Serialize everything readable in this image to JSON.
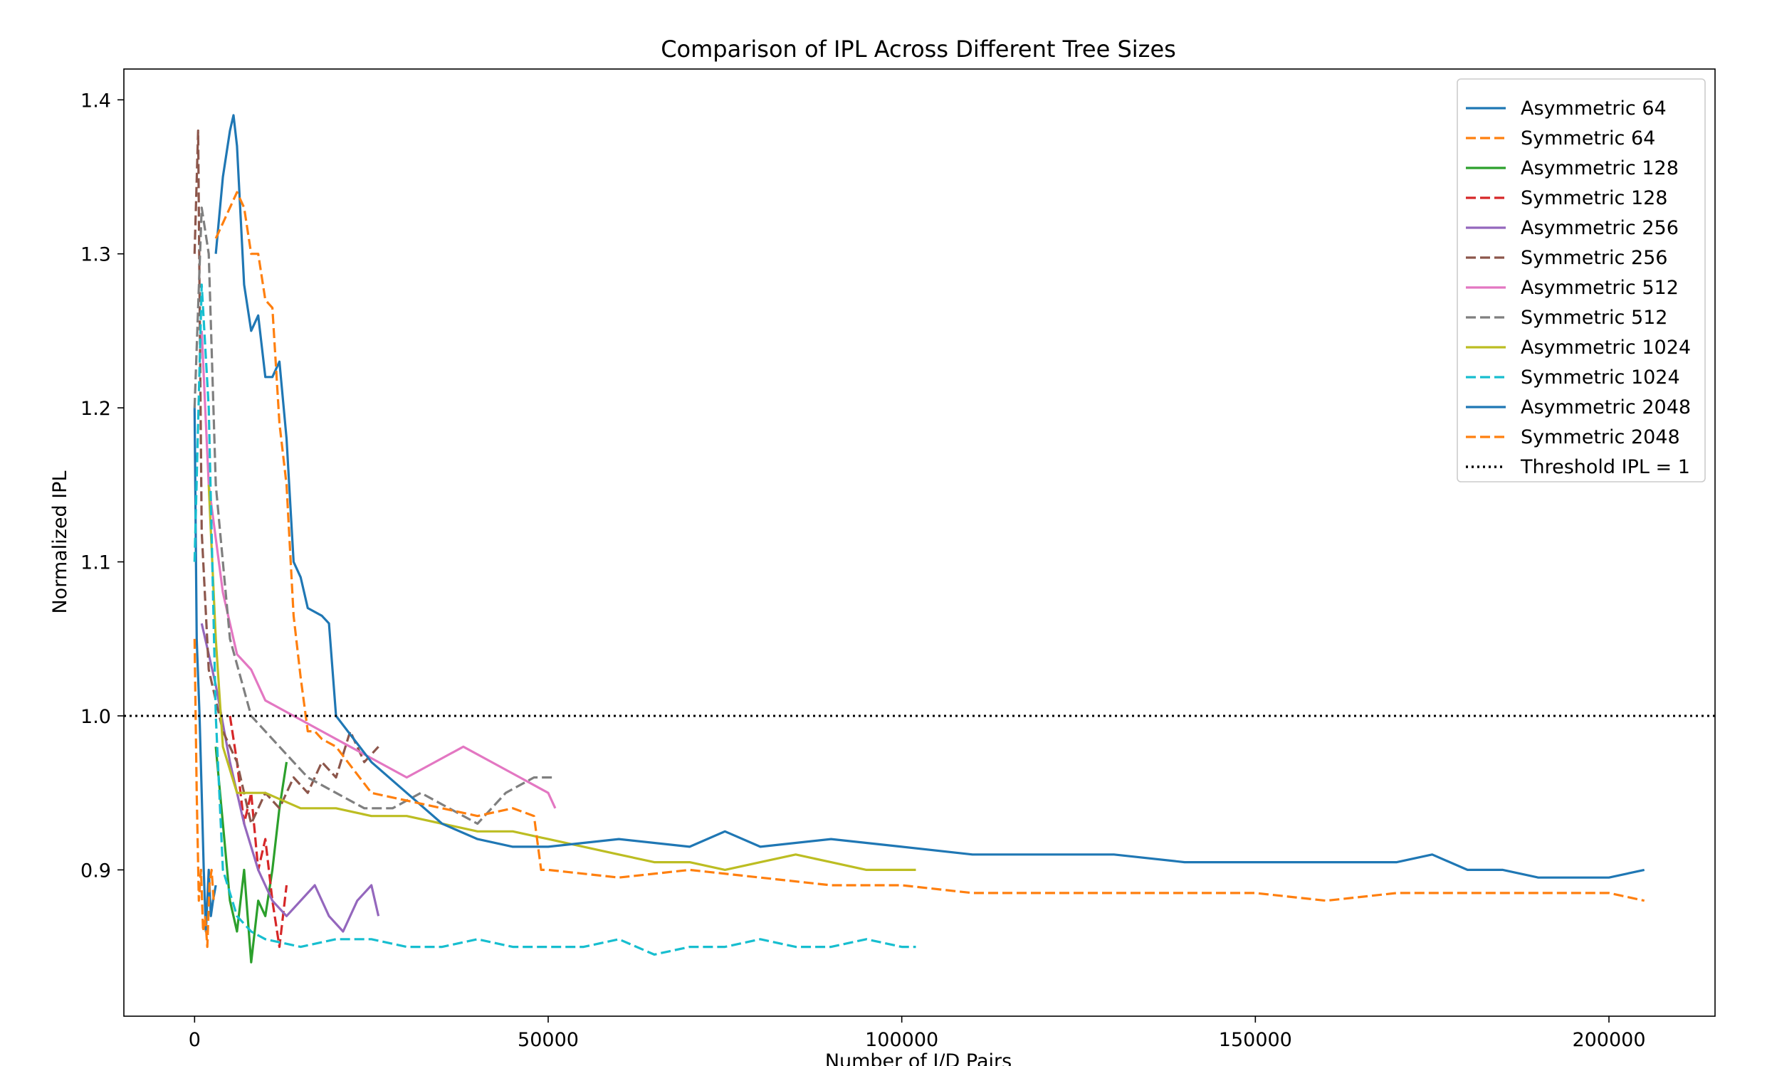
{
  "chart_data": {
    "type": "line",
    "title": "Comparison of IPL Across Different Tree Sizes",
    "xlabel": "Number of I/D Pairs",
    "ylabel": "Normalized IPL",
    "xlim": [
      -10000,
      215000
    ],
    "ylim": [
      0.805,
      1.42
    ],
    "xticks": [
      0,
      50000,
      100000,
      150000,
      200000
    ],
    "xtick_labels": [
      "0",
      "50000",
      "100000",
      "150000",
      "200000"
    ],
    "yticks": [
      0.9,
      1.0,
      1.1,
      1.2,
      1.3,
      1.4
    ],
    "ytick_labels": [
      "0.9",
      "1.0",
      "1.1",
      "1.2",
      "1.3",
      "1.4"
    ],
    "grid": false,
    "legend_position": "top-right",
    "threshold": {
      "name": "Threshold IPL = 1",
      "y": 1.0,
      "color": "#000000",
      "style": "dotted"
    },
    "series": [
      {
        "name": "Asymmetric 64",
        "color": "#1f77b4",
        "style": "solid",
        "x": [
          0,
          300,
          700,
          1000,
          1300,
          1600,
          2000,
          2300,
          2600,
          3000
        ],
        "y": [
          1.2,
          1.05,
          1.0,
          0.95,
          0.9,
          0.86,
          0.9,
          0.87,
          0.88,
          0.89
        ]
      },
      {
        "name": "Symmetric 64",
        "color": "#ff7f0e",
        "style": "dashed",
        "x": [
          0,
          300,
          600,
          900,
          1200,
          1500,
          1800,
          2100,
          2400,
          2700
        ],
        "y": [
          1.05,
          0.95,
          0.88,
          0.9,
          0.86,
          0.87,
          0.85,
          0.89,
          0.9,
          0.88
        ]
      },
      {
        "name": "Asymmetric 128",
        "color": "#2ca02c",
        "style": "solid",
        "x": [
          3000,
          4000,
          5000,
          6000,
          7000,
          8000,
          9000,
          10000,
          11000,
          12000,
          13000
        ],
        "y": [
          0.98,
          0.93,
          0.88,
          0.86,
          0.9,
          0.84,
          0.88,
          0.87,
          0.9,
          0.94,
          0.97
        ]
      },
      {
        "name": "Symmetric 128",
        "color": "#d62728",
        "style": "dashed",
        "x": [
          5000,
          6000,
          7000,
          8000,
          9000,
          10000,
          11000,
          12000,
          13000
        ],
        "y": [
          1.0,
          0.97,
          0.93,
          0.95,
          0.9,
          0.92,
          0.88,
          0.85,
          0.89
        ]
      },
      {
        "name": "Asymmetric 256",
        "color": "#9467bd",
        "style": "solid",
        "x": [
          1000,
          3000,
          5000,
          7000,
          9000,
          11000,
          13000,
          15000,
          17000,
          19000,
          21000,
          23000,
          25000,
          26000
        ],
        "y": [
          1.06,
          1.02,
          0.97,
          0.93,
          0.9,
          0.88,
          0.87,
          0.88,
          0.89,
          0.87,
          0.86,
          0.88,
          0.89,
          0.87
        ]
      },
      {
        "name": "Symmetric 256",
        "color": "#8c564b",
        "style": "dashed",
        "x": [
          0,
          500,
          1000,
          2000,
          4000,
          6000,
          8000,
          10000,
          12000,
          14000,
          16000,
          18000,
          20000,
          22000,
          24000,
          26000
        ],
        "y": [
          1.3,
          1.38,
          1.12,
          1.03,
          0.99,
          0.97,
          0.93,
          0.95,
          0.94,
          0.96,
          0.95,
          0.97,
          0.96,
          0.99,
          0.97,
          0.98
        ]
      },
      {
        "name": "Asymmetric 512",
        "color": "#e377c2",
        "style": "solid",
        "x": [
          1000,
          2000,
          4000,
          6000,
          8000,
          10000,
          14000,
          18000,
          22000,
          26000,
          30000,
          34000,
          38000,
          42000,
          46000,
          50000,
          51000
        ],
        "y": [
          1.25,
          1.15,
          1.08,
          1.04,
          1.03,
          1.01,
          1.0,
          0.99,
          0.98,
          0.97,
          0.96,
          0.97,
          0.98,
          0.97,
          0.96,
          0.95,
          0.94
        ]
      },
      {
        "name": "Symmetric 512",
        "color": "#7f7f7f",
        "style": "dashed",
        "x": [
          0,
          1000,
          2000,
          3000,
          5000,
          8000,
          12000,
          16000,
          20000,
          24000,
          28000,
          32000,
          36000,
          40000,
          44000,
          48000,
          51000
        ],
        "y": [
          1.2,
          1.33,
          1.3,
          1.15,
          1.05,
          1.0,
          0.98,
          0.96,
          0.95,
          0.94,
          0.94,
          0.95,
          0.94,
          0.93,
          0.95,
          0.96,
          0.96
        ]
      },
      {
        "name": "Asymmetric 1024",
        "color": "#bcbd22",
        "style": "solid",
        "x": [
          2000,
          3000,
          4000,
          6000,
          10000,
          15000,
          20000,
          25000,
          30000,
          35000,
          40000,
          45000,
          50000,
          55000,
          60000,
          65000,
          70000,
          75000,
          80000,
          85000,
          90000,
          95000,
          100000,
          102000
        ],
        "y": [
          1.15,
          1.05,
          0.98,
          0.95,
          0.95,
          0.94,
          0.94,
          0.935,
          0.935,
          0.93,
          0.925,
          0.925,
          0.92,
          0.915,
          0.91,
          0.905,
          0.905,
          0.9,
          0.905,
          0.91,
          0.905,
          0.9,
          0.9,
          0.9
        ]
      },
      {
        "name": "Symmetric 1024",
        "color": "#17becf",
        "style": "dashed",
        "x": [
          0,
          1000,
          2000,
          3000,
          4000,
          6000,
          8000,
          10000,
          15000,
          20000,
          25000,
          30000,
          35000,
          40000,
          45000,
          50000,
          55000,
          60000,
          65000,
          70000,
          75000,
          80000,
          85000,
          90000,
          95000,
          100000,
          102000
        ],
        "y": [
          1.1,
          1.28,
          1.2,
          1.0,
          0.9,
          0.87,
          0.86,
          0.855,
          0.85,
          0.855,
          0.855,
          0.85,
          0.85,
          0.855,
          0.85,
          0.85,
          0.85,
          0.855,
          0.845,
          0.85,
          0.85,
          0.855,
          0.85,
          0.85,
          0.855,
          0.85,
          0.85
        ]
      },
      {
        "name": "Asymmetric 2048",
        "color": "#1f77b4",
        "style": "solid",
        "x": [
          3000,
          4000,
          5000,
          5500,
          6000,
          7000,
          8000,
          9000,
          10000,
          11000,
          12000,
          13000,
          14000,
          15000,
          16000,
          18000,
          19000,
          20000,
          25000,
          30000,
          35000,
          40000,
          45000,
          50000,
          60000,
          70000,
          75000,
          80000,
          90000,
          100000,
          110000,
          120000,
          130000,
          140000,
          150000,
          160000,
          170000,
          175000,
          180000,
          185000,
          190000,
          195000,
          200000,
          205000
        ],
        "y": [
          1.3,
          1.35,
          1.38,
          1.39,
          1.37,
          1.28,
          1.25,
          1.26,
          1.22,
          1.22,
          1.23,
          1.18,
          1.1,
          1.09,
          1.07,
          1.065,
          1.06,
          1.0,
          0.97,
          0.95,
          0.93,
          0.92,
          0.915,
          0.915,
          0.92,
          0.915,
          0.925,
          0.915,
          0.92,
          0.915,
          0.91,
          0.91,
          0.91,
          0.905,
          0.905,
          0.905,
          0.905,
          0.91,
          0.9,
          0.9,
          0.895,
          0.895,
          0.895,
          0.9
        ]
      },
      {
        "name": "Symmetric 2048",
        "color": "#ff7f0e",
        "style": "dashed",
        "x": [
          3000,
          4000,
          5000,
          6000,
          7000,
          8000,
          9000,
          10000,
          11000,
          12000,
          13000,
          14000,
          15000,
          16000,
          17000,
          18000,
          20000,
          25000,
          30000,
          35000,
          40000,
          45000,
          48000,
          49000,
          50000,
          60000,
          70000,
          80000,
          90000,
          100000,
          110000,
          120000,
          130000,
          140000,
          150000,
          160000,
          170000,
          180000,
          190000,
          200000,
          205000
        ],
        "y": [
          1.31,
          1.32,
          1.33,
          1.34,
          1.33,
          1.3,
          1.3,
          1.27,
          1.265,
          1.19,
          1.15,
          1.065,
          1.025,
          0.99,
          0.99,
          0.985,
          0.98,
          0.95,
          0.945,
          0.94,
          0.935,
          0.94,
          0.935,
          0.9,
          0.9,
          0.895,
          0.9,
          0.895,
          0.89,
          0.89,
          0.885,
          0.885,
          0.885,
          0.885,
          0.885,
          0.88,
          0.885,
          0.885,
          0.885,
          0.885,
          0.88
        ]
      }
    ]
  }
}
